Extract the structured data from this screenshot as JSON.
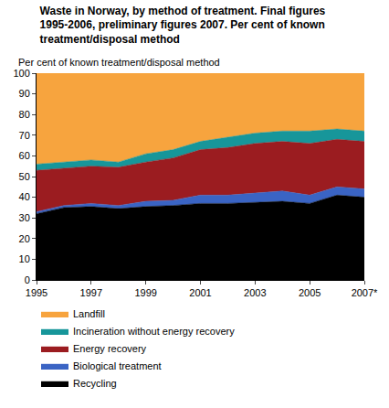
{
  "chart_data": {
    "type": "area",
    "stacked": true,
    "title": "Waste in Norway, by method of treatment. Final figures 1995-2006, preliminary figures 2007. Per cent of known treatment/disposal method",
    "ylabel": "Per cent of known treatment/disposal method",
    "x": [
      1995,
      1996,
      1997,
      1998,
      1999,
      2000,
      2001,
      2002,
      2003,
      2004,
      2005,
      2006,
      2007
    ],
    "xlim": [
      1995,
      2007
    ],
    "xticks": [
      1995,
      1997,
      1999,
      2001,
      2003,
      2005,
      {
        "value": 2007,
        "label": "2007*"
      }
    ],
    "ylim": [
      0,
      100
    ],
    "yticks": [
      0,
      10,
      20,
      30,
      40,
      50,
      60,
      70,
      80,
      90,
      100
    ],
    "grid": false,
    "legend": "bottom",
    "series": [
      {
        "name": "Recycling",
        "color": "#000000",
        "values": [
          32,
          35,
          35.5,
          34.5,
          35.5,
          36,
          37,
          37,
          37.5,
          38,
          37,
          41,
          40
        ]
      },
      {
        "name": "Biological treatment",
        "color": "#3a64c4",
        "values": [
          1,
          1,
          1.5,
          1.5,
          2.5,
          2.5,
          4,
          4,
          4.5,
          5,
          4,
          4,
          4
        ]
      },
      {
        "name": "Energy recovery",
        "color": "#9b1c20",
        "values": [
          20,
          18,
          18,
          18.5,
          19,
          20.5,
          22,
          23,
          24,
          24,
          25,
          23,
          23
        ]
      },
      {
        "name": "Incineration without energy recovery",
        "color": "#17969a",
        "values": [
          3,
          3,
          3,
          2.5,
          4,
          4,
          4,
          5,
          5,
          5,
          6,
          5,
          5
        ]
      },
      {
        "name": "Landfill",
        "color": "#f7a43e",
        "values": [
          44,
          43,
          42,
          43,
          39,
          37,
          33,
          31,
          29,
          28,
          28,
          27,
          28
        ]
      }
    ]
  }
}
